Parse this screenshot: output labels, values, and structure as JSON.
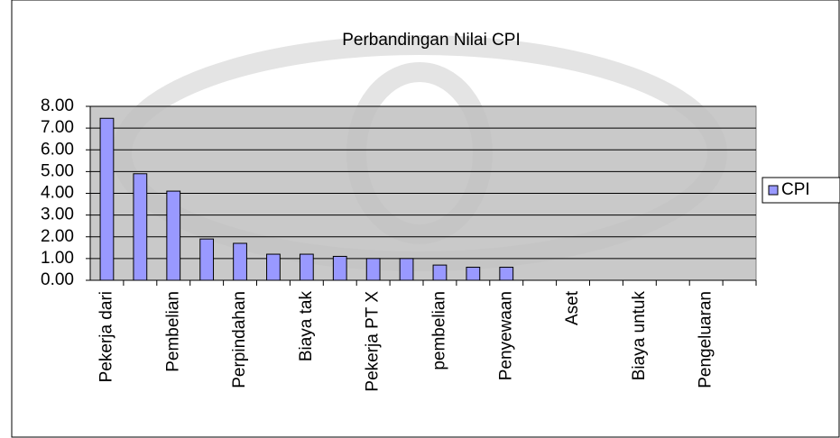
{
  "chart_data": {
    "type": "bar",
    "title": "Perbandingan Nilai CPI",
    "categories": [
      "Pekerja dari",
      null,
      "Pembelian",
      null,
      "Perpindahan",
      null,
      "Biaya tak",
      null,
      "Pekerja PT X",
      null,
      "pembelian",
      null,
      "Penyewaan",
      null,
      "Aset",
      null,
      "Biaya untuk",
      null,
      "Pengeluaran",
      null
    ],
    "series": [
      {
        "name": "CPI",
        "color": "#9999ff",
        "values": [
          7.45,
          4.9,
          4.1,
          1.9,
          1.7,
          1.2,
          1.2,
          1.1,
          1.0,
          1.0,
          0.7,
          0.6,
          0.6,
          0,
          0,
          0,
          0,
          0,
          0,
          0
        ]
      }
    ],
    "ylim": [
      0,
      8
    ],
    "yticks": [
      {
        "value": 0,
        "label": "0.00"
      },
      {
        "value": 1,
        "label": "1.00"
      },
      {
        "value": 2,
        "label": "2.00"
      },
      {
        "value": 3,
        "label": "3.00"
      },
      {
        "value": 4,
        "label": "4.00"
      },
      {
        "value": 5,
        "label": "5.00"
      },
      {
        "value": 6,
        "label": "6.00"
      },
      {
        "value": 7,
        "label": "7.00"
      },
      {
        "value": 8,
        "label": "8.00"
      }
    ],
    "grid": true,
    "legend": "right"
  }
}
